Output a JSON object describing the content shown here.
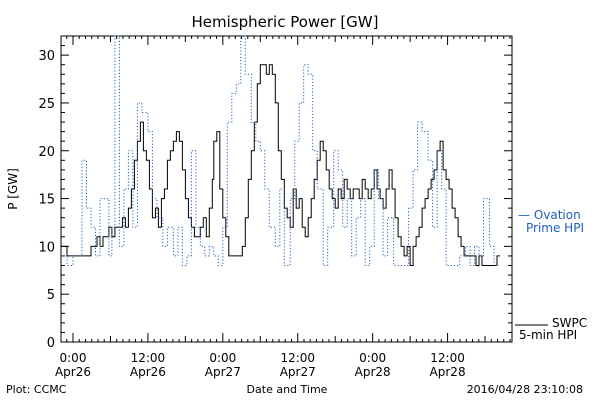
{
  "chart_data": {
    "type": "line",
    "title": "Hemispheric Power [GW]",
    "xlabel": "Date and Time",
    "ylabel": "P [GW]",
    "ylim": [
      0,
      32
    ],
    "xlim": [
      -0.08,
      2.93
    ],
    "yticks": [
      0,
      5,
      10,
      15,
      20,
      25,
      30
    ],
    "xticks": [
      {
        "x": 0.0,
        "time": "0:00",
        "date": "Apr26"
      },
      {
        "x": 0.5,
        "time": "12:00",
        "date": "Apr26"
      },
      {
        "x": 1.0,
        "time": "0:00",
        "date": "Apr27"
      },
      {
        "x": 1.5,
        "time": "12:00",
        "date": "Apr27"
      },
      {
        "x": 2.0,
        "time": "0:00",
        "date": "Apr28"
      },
      {
        "x": 2.5,
        "time": "12:00",
        "date": "Apr28"
      }
    ],
    "grid": false,
    "series": [
      {
        "name": "SWPC 5-min HPI",
        "color": "#000000",
        "style": "solid",
        "points": [
          [
            -0.08,
            10
          ],
          [
            -0.06,
            10
          ],
          [
            -0.04,
            9
          ],
          [
            0.0,
            9
          ],
          [
            0.05,
            9
          ],
          [
            0.08,
            9
          ],
          [
            0.12,
            10
          ],
          [
            0.16,
            11
          ],
          [
            0.18,
            10
          ],
          [
            0.2,
            11
          ],
          [
            0.22,
            11
          ],
          [
            0.24,
            12
          ],
          [
            0.26,
            11
          ],
          [
            0.28,
            12
          ],
          [
            0.3,
            12
          ],
          [
            0.33,
            13
          ],
          [
            0.35,
            12
          ],
          [
            0.37,
            14
          ],
          [
            0.39,
            16
          ],
          [
            0.41,
            19
          ],
          [
            0.43,
            21
          ],
          [
            0.45,
            23
          ],
          [
            0.47,
            20
          ],
          [
            0.49,
            19
          ],
          [
            0.51,
            16
          ],
          [
            0.53,
            13
          ],
          [
            0.55,
            14
          ],
          [
            0.57,
            12
          ],
          [
            0.59,
            15
          ],
          [
            0.61,
            16
          ],
          [
            0.63,
            19
          ],
          [
            0.65,
            20
          ],
          [
            0.67,
            21
          ],
          [
            0.69,
            22
          ],
          [
            0.71,
            21
          ],
          [
            0.73,
            18
          ],
          [
            0.75,
            15
          ],
          [
            0.77,
            13
          ],
          [
            0.79,
            12
          ],
          [
            0.81,
            11
          ],
          [
            0.83,
            11
          ],
          [
            0.85,
            12
          ],
          [
            0.87,
            13
          ],
          [
            0.89,
            11
          ],
          [
            0.91,
            14
          ],
          [
            0.93,
            17
          ],
          [
            0.94,
            21
          ],
          [
            0.96,
            22
          ],
          [
            0.98,
            16
          ],
          [
            1.0,
            13
          ],
          [
            1.02,
            11
          ],
          [
            1.04,
            9
          ],
          [
            1.07,
            9
          ],
          [
            1.1,
            9
          ],
          [
            1.13,
            10
          ],
          [
            1.15,
            13
          ],
          [
            1.17,
            17
          ],
          [
            1.19,
            20
          ],
          [
            1.21,
            23
          ],
          [
            1.23,
            27
          ],
          [
            1.25,
            29
          ],
          [
            1.27,
            29
          ],
          [
            1.29,
            28
          ],
          [
            1.31,
            29
          ],
          [
            1.33,
            28
          ],
          [
            1.35,
            25
          ],
          [
            1.37,
            20
          ],
          [
            1.39,
            17
          ],
          [
            1.41,
            14
          ],
          [
            1.43,
            13
          ],
          [
            1.45,
            12
          ],
          [
            1.47,
            16
          ],
          [
            1.49,
            14
          ],
          [
            1.51,
            15
          ],
          [
            1.53,
            12
          ],
          [
            1.55,
            11
          ],
          [
            1.57,
            13
          ],
          [
            1.59,
            15
          ],
          [
            1.61,
            17
          ],
          [
            1.63,
            19
          ],
          [
            1.65,
            21
          ],
          [
            1.67,
            20
          ],
          [
            1.69,
            18
          ],
          [
            1.71,
            16
          ],
          [
            1.73,
            15
          ],
          [
            1.75,
            14
          ],
          [
            1.77,
            16
          ],
          [
            1.79,
            15
          ],
          [
            1.81,
            17
          ],
          [
            1.83,
            16
          ],
          [
            1.85,
            15
          ],
          [
            1.87,
            16
          ],
          [
            1.89,
            16
          ],
          [
            1.91,
            15
          ],
          [
            1.93,
            17
          ],
          [
            1.95,
            16
          ],
          [
            1.97,
            15
          ],
          [
            1.99,
            16
          ],
          [
            2.01,
            18
          ],
          [
            2.03,
            16
          ],
          [
            2.05,
            15
          ],
          [
            2.07,
            14
          ],
          [
            2.09,
            16
          ],
          [
            2.11,
            18
          ],
          [
            2.13,
            16
          ],
          [
            2.15,
            13
          ],
          [
            2.17,
            11
          ],
          [
            2.19,
            10
          ],
          [
            2.21,
            9
          ],
          [
            2.23,
            10
          ],
          [
            2.25,
            8
          ],
          [
            2.27,
            10
          ],
          [
            2.29,
            11
          ],
          [
            2.31,
            12
          ],
          [
            2.33,
            14
          ],
          [
            2.35,
            15
          ],
          [
            2.37,
            16
          ],
          [
            2.39,
            17
          ],
          [
            2.41,
            18
          ],
          [
            2.43,
            20
          ],
          [
            2.45,
            21
          ],
          [
            2.47,
            18
          ],
          [
            2.49,
            17
          ],
          [
            2.51,
            16
          ],
          [
            2.53,
            14
          ],
          [
            2.55,
            13
          ],
          [
            2.57,
            11
          ],
          [
            2.59,
            10
          ],
          [
            2.61,
            9
          ],
          [
            2.63,
            9
          ],
          [
            2.65,
            9
          ],
          [
            2.67,
            9
          ],
          [
            2.69,
            8
          ],
          [
            2.71,
            9
          ],
          [
            2.73,
            8
          ],
          [
            2.75,
            8
          ],
          [
            2.77,
            8
          ],
          [
            2.79,
            8
          ],
          [
            2.81,
            8
          ],
          [
            2.83,
            9
          ],
          [
            2.85,
            9
          ]
        ]
      },
      {
        "name": "Ovation Prime HPI",
        "color": "#1f5fbf",
        "style": "dotted",
        "points": [
          [
            -0.08,
            9
          ],
          [
            -0.04,
            8
          ],
          [
            0.0,
            9
          ],
          [
            0.04,
            9
          ],
          [
            0.06,
            19
          ],
          [
            0.09,
            14
          ],
          [
            0.12,
            12
          ],
          [
            0.15,
            9
          ],
          [
            0.18,
            15
          ],
          [
            0.21,
            15
          ],
          [
            0.24,
            9
          ],
          [
            0.26,
            12
          ],
          [
            0.28,
            32
          ],
          [
            0.31,
            10
          ],
          [
            0.34,
            16
          ],
          [
            0.37,
            20
          ],
          [
            0.4,
            12
          ],
          [
            0.43,
            25
          ],
          [
            0.46,
            24
          ],
          [
            0.5,
            22
          ],
          [
            0.53,
            15
          ],
          [
            0.56,
            13
          ],
          [
            0.6,
            10
          ],
          [
            0.63,
            12
          ],
          [
            0.67,
            9
          ],
          [
            0.7,
            12
          ],
          [
            0.73,
            8
          ],
          [
            0.76,
            9
          ],
          [
            0.79,
            20
          ],
          [
            0.82,
            12
          ],
          [
            0.85,
            10
          ],
          [
            0.88,
            9
          ],
          [
            0.91,
            10
          ],
          [
            0.94,
            9
          ],
          [
            0.97,
            8
          ],
          [
            1.0,
            12
          ],
          [
            1.03,
            23
          ],
          [
            1.06,
            26
          ],
          [
            1.09,
            27
          ],
          [
            1.12,
            32
          ],
          [
            1.15,
            28
          ],
          [
            1.19,
            23
          ],
          [
            1.22,
            21
          ],
          [
            1.25,
            20
          ],
          [
            1.28,
            16
          ],
          [
            1.31,
            12
          ],
          [
            1.35,
            10
          ],
          [
            1.38,
            16
          ],
          [
            1.41,
            8
          ],
          [
            1.45,
            15
          ],
          [
            1.48,
            21
          ],
          [
            1.51,
            25
          ],
          [
            1.54,
            29
          ],
          [
            1.57,
            28
          ],
          [
            1.6,
            20
          ],
          [
            1.63,
            16
          ],
          [
            1.67,
            8
          ],
          [
            1.7,
            12
          ],
          [
            1.74,
            20
          ],
          [
            1.77,
            18
          ],
          [
            1.8,
            12
          ],
          [
            1.83,
            15
          ],
          [
            1.86,
            9
          ],
          [
            1.89,
            13
          ],
          [
            1.92,
            15
          ],
          [
            1.95,
            8
          ],
          [
            1.98,
            10
          ],
          [
            2.01,
            18
          ],
          [
            2.04,
            15
          ],
          [
            2.07,
            9
          ],
          [
            2.1,
            13
          ],
          [
            2.14,
            8
          ],
          [
            2.17,
            8
          ],
          [
            2.2,
            8
          ],
          [
            2.24,
            14
          ],
          [
            2.27,
            18
          ],
          [
            2.3,
            23
          ],
          [
            2.33,
            22
          ],
          [
            2.37,
            19
          ],
          [
            2.4,
            12
          ],
          [
            2.43,
            20
          ],
          [
            2.46,
            16
          ],
          [
            2.49,
            8
          ],
          [
            2.52,
            8
          ],
          [
            2.55,
            8
          ],
          [
            2.58,
            9
          ],
          [
            2.62,
            10
          ],
          [
            2.65,
            8
          ],
          [
            2.68,
            10
          ],
          [
            2.71,
            9
          ],
          [
            2.74,
            15
          ],
          [
            2.78,
            10
          ],
          [
            2.81,
            8
          ],
          [
            2.84,
            8
          ]
        ]
      }
    ]
  },
  "legend": {
    "ovation_line1": "— Ovation",
    "ovation_line2": "Prime HPI",
    "swpc_line1": "SWPC",
    "swpc_line2": "5-min HPI"
  },
  "footer": {
    "left": "Plot: CCMC",
    "right": "2016/04/28 23:10:08"
  }
}
